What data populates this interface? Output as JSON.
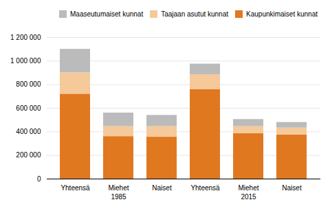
{
  "chart_data": {
    "type": "bar",
    "stacked": true,
    "categories": [
      "Yhteensä",
      "Miehet",
      "Naiset",
      "Yhteensä",
      "Miehet",
      "Naiset"
    ],
    "groups": [
      "1985",
      "1985",
      "1985",
      "2015",
      "2015",
      "2015"
    ],
    "series": [
      {
        "name": "Kaupunkimaiset kunnat",
        "color": "#E07820",
        "values": [
          720000,
          360000,
          355000,
          760000,
          385000,
          375000
        ]
      },
      {
        "name": "Taajaan asutut kunnat",
        "color": "#F5C99A",
        "values": [
          180000,
          85000,
          90000,
          125000,
          60000,
          58000
        ]
      },
      {
        "name": "Maaseutumaiset kunnat",
        "color": "#BBBBBB",
        "values": [
          200000,
          115000,
          95000,
          90000,
          60000,
          47000
        ]
      }
    ],
    "ylim": [
      0,
      1200000
    ],
    "yticks": [
      0,
      {
        "value": 200000,
        "label": "200 000"
      },
      {
        "value": 400000,
        "label": "400 000"
      },
      {
        "value": 600000,
        "label": "600 000"
      },
      {
        "value": 800000,
        "label": "800 000"
      },
      {
        "value": 1000000,
        "label": "1 000 000"
      },
      {
        "value": 1200000,
        "label": "1 200 000"
      }
    ],
    "grid": true,
    "legend": "upper right"
  }
}
